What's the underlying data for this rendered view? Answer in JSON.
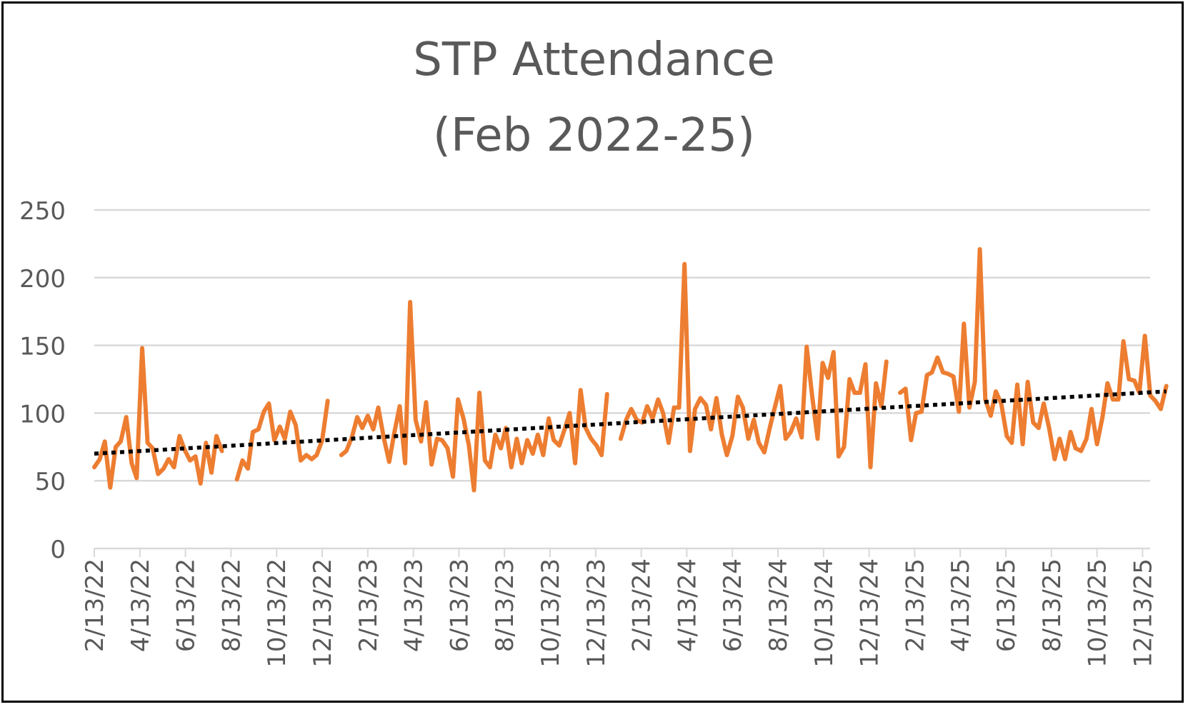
{
  "chart_data": {
    "type": "line",
    "title": "STP Attendance",
    "subtitle": "(Feb 2022-25)",
    "xlabel": "",
    "ylabel": "",
    "ylim": [
      0,
      250
    ],
    "yticks": [
      0,
      50,
      100,
      150,
      200,
      250
    ],
    "grid": true,
    "legend": "none",
    "xtick_labels": [
      "2/13/22",
      "4/13/22",
      "6/13/22",
      "8/13/22",
      "10/13/22",
      "12/13/22",
      "2/13/23",
      "4/13/23",
      "6/13/23",
      "8/13/23",
      "10/13/23",
      "12/13/23",
      "2/13/24",
      "4/13/24",
      "6/13/24",
      "8/13/24",
      "10/13/24",
      "12/13/24",
      "2/13/25",
      "4/13/25",
      "6/13/25",
      "8/13/25",
      "10/13/25",
      "12/13/25"
    ],
    "x_domain": [
      0,
      23.1
    ],
    "series": [
      {
        "name": "Attendance",
        "color": "#ED7D31",
        "segments": [
          [
            [
              0.0,
              60
            ],
            [
              0.12,
              66
            ],
            [
              0.23,
              79
            ],
            [
              0.35,
              45
            ],
            [
              0.47,
              75
            ],
            [
              0.58,
              79
            ],
            [
              0.7,
              97
            ],
            [
              0.82,
              63
            ],
            [
              0.93,
              52
            ],
            [
              1.05,
              148
            ],
            [
              1.17,
              78
            ],
            [
              1.28,
              74
            ],
            [
              1.4,
              55
            ],
            [
              1.52,
              59
            ],
            [
              1.63,
              66
            ],
            [
              1.75,
              60
            ],
            [
              1.87,
              83
            ],
            [
              1.98,
              73
            ],
            [
              2.1,
              65
            ],
            [
              2.22,
              68
            ],
            [
              2.33,
              48
            ],
            [
              2.45,
              78
            ],
            [
              2.57,
              56
            ],
            [
              2.68,
              83
            ],
            [
              2.8,
              72
            ]
          ],
          [
            [
              3.13,
              51
            ],
            [
              3.25,
              65
            ],
            [
              3.37,
              59
            ],
            [
              3.48,
              86
            ],
            [
              3.6,
              88
            ],
            [
              3.72,
              101
            ],
            [
              3.83,
              107
            ],
            [
              3.95,
              80
            ],
            [
              4.07,
              90
            ],
            [
              4.18,
              81
            ],
            [
              4.3,
              101
            ],
            [
              4.42,
              91
            ],
            [
              4.53,
              65
            ],
            [
              4.65,
              69
            ],
            [
              4.77,
              66
            ],
            [
              4.88,
              69
            ],
            [
              5.0,
              80
            ],
            [
              5.12,
              109
            ]
          ],
          [
            [
              5.42,
              69
            ],
            [
              5.53,
              72
            ],
            [
              5.65,
              82
            ],
            [
              5.77,
              97
            ],
            [
              5.88,
              89
            ],
            [
              6.0,
              98
            ],
            [
              6.12,
              88
            ],
            [
              6.23,
              104
            ],
            [
              6.35,
              82
            ],
            [
              6.47,
              64
            ],
            [
              6.58,
              85
            ],
            [
              6.7,
              105
            ],
            [
              6.82,
              63
            ],
            [
              6.93,
              182
            ],
            [
              7.05,
              95
            ],
            [
              7.17,
              79
            ],
            [
              7.28,
              108
            ],
            [
              7.4,
              62
            ],
            [
              7.52,
              81
            ],
            [
              7.63,
              80
            ],
            [
              7.75,
              74
            ],
            [
              7.87,
              53
            ],
            [
              7.98,
              110
            ],
            [
              8.1,
              96
            ],
            [
              8.22,
              76
            ],
            [
              8.33,
              43
            ],
            [
              8.45,
              115
            ],
            [
              8.57,
              65
            ],
            [
              8.68,
              60
            ],
            [
              8.8,
              84
            ],
            [
              8.92,
              74
            ],
            [
              9.03,
              89
            ],
            [
              9.15,
              60
            ],
            [
              9.27,
              81
            ],
            [
              9.38,
              63
            ],
            [
              9.5,
              80
            ],
            [
              9.62,
              70
            ],
            [
              9.73,
              84
            ],
            [
              9.85,
              69
            ],
            [
              9.97,
              96
            ],
            [
              10.08,
              80
            ],
            [
              10.2,
              76
            ],
            [
              10.32,
              88
            ],
            [
              10.43,
              100
            ],
            [
              10.55,
              63
            ],
            [
              10.67,
              117
            ],
            [
              10.78,
              89
            ],
            [
              10.9,
              81
            ],
            [
              11.02,
              76
            ],
            [
              11.13,
              69
            ],
            [
              11.25,
              114
            ]
          ],
          [
            [
              11.55,
              81
            ],
            [
              11.67,
              95
            ],
            [
              11.78,
              103
            ],
            [
              11.9,
              95
            ],
            [
              12.02,
              93
            ],
            [
              12.13,
              105
            ],
            [
              12.25,
              96
            ],
            [
              12.37,
              110
            ],
            [
              12.48,
              100
            ],
            [
              12.6,
              78
            ],
            [
              12.72,
              104
            ],
            [
              12.83,
              104
            ],
            [
              12.95,
              210
            ],
            [
              13.07,
              72
            ],
            [
              13.18,
              103
            ],
            [
              13.3,
              111
            ],
            [
              13.42,
              106
            ],
            [
              13.53,
              88
            ],
            [
              13.65,
              111
            ],
            [
              13.77,
              84
            ],
            [
              13.88,
              69
            ],
            [
              14.0,
              83
            ],
            [
              14.12,
              112
            ],
            [
              14.23,
              104
            ],
            [
              14.35,
              81
            ],
            [
              14.47,
              95
            ],
            [
              14.58,
              78
            ],
            [
              14.7,
              71
            ],
            [
              14.82,
              89
            ],
            [
              14.93,
              104
            ],
            [
              15.05,
              120
            ],
            [
              15.17,
              81
            ],
            [
              15.28,
              86
            ],
            [
              15.4,
              96
            ],
            [
              15.52,
              82
            ],
            [
              15.63,
              149
            ],
            [
              15.75,
              113
            ],
            [
              15.87,
              81
            ],
            [
              15.98,
              137
            ],
            [
              16.1,
              126
            ],
            [
              16.22,
              145
            ],
            [
              16.33,
              68
            ],
            [
              16.45,
              75
            ],
            [
              16.57,
              125
            ],
            [
              16.68,
              115
            ],
            [
              16.8,
              115
            ],
            [
              16.92,
              136
            ],
            [
              17.03,
              60
            ],
            [
              17.15,
              122
            ],
            [
              17.27,
              105
            ],
            [
              17.38,
              138
            ]
          ],
          [
            [
              17.68,
              115
            ],
            [
              17.8,
              118
            ],
            [
              17.92,
              80
            ],
            [
              18.03,
              100
            ],
            [
              18.15,
              101
            ],
            [
              18.27,
              128
            ],
            [
              18.38,
              130
            ],
            [
              18.5,
              141
            ],
            [
              18.62,
              130
            ],
            [
              18.73,
              129
            ],
            [
              18.85,
              127
            ],
            [
              18.97,
              101
            ],
            [
              19.08,
              166
            ],
            [
              19.2,
              104
            ],
            [
              19.32,
              123
            ],
            [
              19.43,
              221
            ],
            [
              19.55,
              110
            ],
            [
              19.67,
              98
            ],
            [
              19.78,
              116
            ],
            [
              19.9,
              107
            ],
            [
              20.02,
              83
            ],
            [
              20.13,
              78
            ],
            [
              20.25,
              121
            ],
            [
              20.37,
              77
            ],
            [
              20.48,
              123
            ],
            [
              20.6,
              93
            ],
            [
              20.72,
              89
            ],
            [
              20.83,
              107
            ],
            [
              20.95,
              89
            ],
            [
              21.07,
              66
            ],
            [
              21.18,
              81
            ],
            [
              21.3,
              66
            ],
            [
              21.42,
              86
            ],
            [
              21.53,
              74
            ],
            [
              21.65,
              72
            ],
            [
              21.77,
              81
            ],
            [
              21.88,
              103
            ],
            [
              22.0,
              77
            ],
            [
              22.12,
              97
            ],
            [
              22.23,
              122
            ],
            [
              22.35,
              110
            ],
            [
              22.47,
              110
            ],
            [
              22.58,
              153
            ],
            [
              22.7,
              125
            ],
            [
              22.82,
              124
            ],
            [
              22.93,
              115
            ],
            [
              23.05,
              157
            ],
            [
              23.17,
              113
            ],
            [
              23.28,
              109
            ],
            [
              23.4,
              103
            ],
            [
              23.52,
              120
            ]
          ]
        ]
      },
      {
        "name": "Linear trend",
        "color": "#000000",
        "style": "dotted",
        "x": [
          0,
          23.52
        ],
        "values": [
          70,
          116
        ]
      }
    ]
  }
}
